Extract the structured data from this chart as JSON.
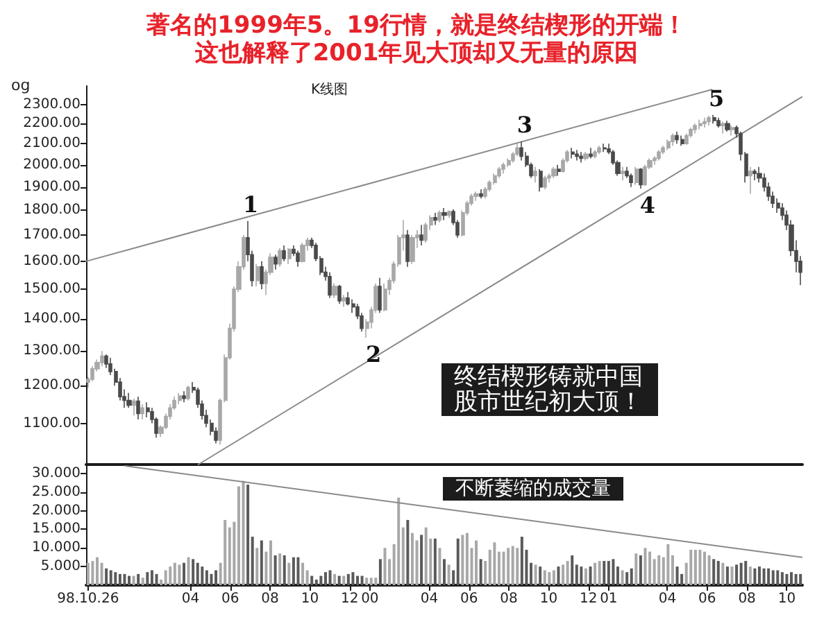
{
  "chart_data": [
    {
      "type": "candlestick",
      "title": "著名的1999年5。19行情，就是终结楔形的开端！",
      "subtitle": "这也解释了2001年见大顶却又无量的原因",
      "x": [
        "1998-10-26",
        "1998-11-02",
        "1998-11-09",
        "1998-11-16",
        "1998-11-23",
        "1998-11-30",
        "1998-12-07",
        "1998-12-14",
        "1998-12-21",
        "1998-12-28",
        "1999-01-04",
        "1999-01-11",
        "1999-01-18",
        "1999-01-25",
        "1999-02-01",
        "1999-02-08",
        "1999-02-15",
        "1999-02-22",
        "1999-03-01",
        "1999-03-08",
        "1999-03-15",
        "1999-03-22",
        "1999-03-29",
        "1999-04-05",
        "1999-04-12",
        "1999-04-19",
        "1999-04-26",
        "1999-05-03",
        "1999-05-10",
        "1999-05-17",
        "1999-05-24",
        "1999-05-31",
        "1999-06-07",
        "1999-06-14",
        "1999-06-21",
        "1999-06-28",
        "1999-07-05",
        "1999-07-12",
        "1999-07-19",
        "1999-07-26",
        "1999-08-02",
        "1999-08-09",
        "1999-08-16",
        "1999-08-23",
        "1999-08-30",
        "1999-09-06",
        "1999-09-13",
        "1999-09-20",
        "1999-09-27",
        "1999-10-04",
        "1999-10-11",
        "1999-10-18",
        "1999-10-25",
        "1999-11-01",
        "1999-11-08",
        "1999-11-15",
        "1999-11-22",
        "1999-11-29",
        "1999-12-06",
        "1999-12-13",
        "1999-12-20",
        "1999-12-27",
        "2000-01-03",
        "2000-01-10",
        "2000-01-17",
        "2000-01-24",
        "2000-01-31",
        "2000-02-07",
        "2000-02-14",
        "2000-02-21",
        "2000-02-28",
        "2000-03-06",
        "2000-03-13",
        "2000-03-20",
        "2000-03-27",
        "2000-04-03",
        "2000-04-10",
        "2000-04-17",
        "2000-04-24",
        "2000-05-01",
        "2000-05-08",
        "2000-05-15",
        "2000-05-22",
        "2000-05-29",
        "2000-06-05",
        "2000-06-12",
        "2000-06-19",
        "2000-06-26",
        "2000-07-03",
        "2000-07-10",
        "2000-07-17",
        "2000-07-24",
        "2000-07-31",
        "2000-08-07",
        "2000-08-14",
        "2000-08-21",
        "2000-08-28",
        "2000-09-04",
        "2000-09-11",
        "2000-09-18",
        "2000-09-25",
        "2000-10-02",
        "2000-10-09",
        "2000-10-16",
        "2000-10-23",
        "2000-10-30",
        "2000-11-06",
        "2000-11-13",
        "2000-11-20",
        "2000-11-27",
        "2000-12-04",
        "2000-12-11",
        "2000-12-18",
        "2000-12-25",
        "2001-01-01",
        "2001-01-08",
        "2001-01-15",
        "2001-01-22",
        "2001-01-29",
        "2001-02-05",
        "2001-02-12",
        "2001-02-19",
        "2001-02-26",
        "2001-03-05",
        "2001-03-12",
        "2001-03-19",
        "2001-03-26",
        "2001-04-02",
        "2001-04-09",
        "2001-04-16",
        "2001-04-23",
        "2001-04-30",
        "2001-05-07",
        "2001-05-14",
        "2001-05-21",
        "2001-05-28",
        "2001-06-04",
        "2001-06-11",
        "2001-06-18",
        "2001-06-25",
        "2001-07-02",
        "2001-07-09",
        "2001-07-16",
        "2001-07-23",
        "2001-07-30",
        "2001-08-06",
        "2001-08-13",
        "2001-08-20",
        "2001-08-27",
        "2001-09-03",
        "2001-09-10",
        "2001-09-17",
        "2001-09-24",
        "2001-10-01",
        "2001-10-08",
        "2001-10-15",
        "2001-10-22"
      ],
      "ohlc": [
        [
          1210,
          1225,
          1195,
          1218
        ],
        [
          1218,
          1255,
          1212,
          1248
        ],
        [
          1248,
          1275,
          1240,
          1266
        ],
        [
          1266,
          1300,
          1255,
          1285
        ],
        [
          1285,
          1290,
          1250,
          1262
        ],
        [
          1262,
          1280,
          1230,
          1240
        ],
        [
          1240,
          1248,
          1200,
          1210
        ],
        [
          1210,
          1222,
          1160,
          1170
        ],
        [
          1170,
          1190,
          1140,
          1160
        ],
        [
          1160,
          1180,
          1140,
          1147
        ],
        [
          1147,
          1165,
          1120,
          1158
        ],
        [
          1158,
          1170,
          1110,
          1125
        ],
        [
          1125,
          1150,
          1110,
          1140
        ],
        [
          1140,
          1155,
          1115,
          1130
        ],
        [
          1130,
          1140,
          1100,
          1110
        ],
        [
          1110,
          1115,
          1064,
          1075
        ],
        [
          1075,
          1095,
          1066,
          1090
        ],
        [
          1090,
          1125,
          1085,
          1118
        ],
        [
          1118,
          1150,
          1110,
          1140
        ],
        [
          1140,
          1170,
          1135,
          1160
        ],
        [
          1160,
          1180,
          1150,
          1172
        ],
        [
          1172,
          1185,
          1155,
          1165
        ],
        [
          1165,
          1200,
          1160,
          1195
        ],
        [
          1195,
          1210,
          1180,
          1188
        ],
        [
          1188,
          1195,
          1140,
          1150
        ],
        [
          1150,
          1160,
          1110,
          1120
        ],
        [
          1120,
          1135,
          1090,
          1100
        ],
        [
          1100,
          1110,
          1070,
          1080
        ],
        [
          1080,
          1090,
          1050,
          1058
        ],
        [
          1058,
          1165,
          1047,
          1160
        ],
        [
          1160,
          1290,
          1155,
          1280
        ],
        [
          1280,
          1385,
          1275,
          1370
        ],
        [
          1370,
          1510,
          1360,
          1500
        ],
        [
          1500,
          1600,
          1490,
          1580
        ],
        [
          1580,
          1700,
          1570,
          1690
        ],
        [
          1690,
          1756,
          1600,
          1625
        ],
        [
          1625,
          1640,
          1510,
          1530
        ],
        [
          1530,
          1590,
          1510,
          1580
        ],
        [
          1580,
          1600,
          1500,
          1520
        ],
        [
          1520,
          1570,
          1480,
          1560
        ],
        [
          1560,
          1630,
          1550,
          1615
        ],
        [
          1615,
          1625,
          1570,
          1590
        ],
        [
          1590,
          1650,
          1580,
          1640
        ],
        [
          1640,
          1660,
          1600,
          1610
        ],
        [
          1610,
          1650,
          1590,
          1645
        ],
        [
          1645,
          1660,
          1620,
          1630
        ],
        [
          1630,
          1640,
          1580,
          1600
        ],
        [
          1600,
          1670,
          1595,
          1660
        ],
        [
          1660,
          1690,
          1640,
          1680
        ],
        [
          1680,
          1690,
          1650,
          1660
        ],
        [
          1660,
          1670,
          1600,
          1610
        ],
        [
          1610,
          1620,
          1550,
          1560
        ],
        [
          1560,
          1580,
          1530,
          1545
        ],
        [
          1545,
          1560,
          1470,
          1480
        ],
        [
          1480,
          1520,
          1470,
          1510
        ],
        [
          1510,
          1515,
          1450,
          1460
        ],
        [
          1460,
          1480,
          1440,
          1470
        ],
        [
          1470,
          1490,
          1445,
          1450
        ],
        [
          1450,
          1465,
          1420,
          1440
        ],
        [
          1440,
          1450,
          1400,
          1410
        ],
        [
          1410,
          1420,
          1360,
          1370
        ],
        [
          1370,
          1400,
          1341,
          1390
        ],
        [
          1390,
          1440,
          1370,
          1430
        ],
        [
          1430,
          1520,
          1420,
          1510
        ],
        [
          1510,
          1540,
          1420,
          1430
        ],
        [
          1430,
          1520,
          1425,
          1500
        ],
        [
          1500,
          1540,
          1480,
          1530
        ],
        [
          1530,
          1600,
          1520,
          1590
        ],
        [
          1590,
          1700,
          1580,
          1690
        ],
        [
          1690,
          1760,
          1640,
          1700
        ],
        [
          1700,
          1720,
          1580,
          1600
        ],
        [
          1600,
          1700,
          1590,
          1690
        ],
        [
          1690,
          1720,
          1650,
          1700
        ],
        [
          1700,
          1740,
          1660,
          1680
        ],
        [
          1680,
          1750,
          1670,
          1740
        ],
        [
          1740,
          1780,
          1720,
          1770
        ],
        [
          1770,
          1790,
          1740,
          1760
        ],
        [
          1760,
          1800,
          1750,
          1790
        ],
        [
          1790,
          1810,
          1760,
          1780
        ],
        [
          1780,
          1800,
          1770,
          1795
        ],
        [
          1795,
          1805,
          1740,
          1750
        ],
        [
          1750,
          1760,
          1690,
          1700
        ],
        [
          1700,
          1800,
          1695,
          1790
        ],
        [
          1790,
          1840,
          1780,
          1830
        ],
        [
          1830,
          1870,
          1820,
          1860
        ],
        [
          1860,
          1880,
          1840,
          1870
        ],
        [
          1870,
          1890,
          1850,
          1860
        ],
        [
          1860,
          1900,
          1850,
          1890
        ],
        [
          1890,
          1930,
          1880,
          1920
        ],
        [
          1920,
          1960,
          1910,
          1950
        ],
        [
          1950,
          1990,
          1940,
          1980
        ],
        [
          1980,
          2010,
          1960,
          2000
        ],
        [
          2000,
          2030,
          1990,
          2020
        ],
        [
          2020,
          2060,
          2010,
          2050
        ],
        [
          2050,
          2100,
          2040,
          2080
        ],
        [
          2080,
          2110,
          2020,
          2040
        ],
        [
          2040,
          2060,
          1990,
          2000
        ],
        [
          2000,
          2010,
          1940,
          1950
        ],
        [
          1950,
          1990,
          1920,
          1970
        ],
        [
          1970,
          1980,
          1880,
          1900
        ],
        [
          1900,
          1950,
          1890,
          1940
        ],
        [
          1940,
          1960,
          1920,
          1950
        ],
        [
          1950,
          1990,
          1940,
          1980
        ],
        [
          1980,
          2000,
          1950,
          1970
        ],
        [
          1970,
          2030,
          1965,
          2020
        ],
        [
          2020,
          2070,
          2010,
          2060
        ],
        [
          2060,
          2080,
          2030,
          2050
        ],
        [
          2050,
          2070,
          2020,
          2040
        ],
        [
          2040,
          2060,
          2010,
          2030
        ],
        [
          2030,
          2060,
          2020,
          2050
        ],
        [
          2050,
          2080,
          2030,
          2040
        ],
        [
          2040,
          2070,
          2030,
          2060
        ],
        [
          2060,
          2090,
          2050,
          2080
        ],
        [
          2080,
          2100,
          2060,
          2075
        ],
        [
          2075,
          2100,
          2050,
          2060
        ],
        [
          2060,
          2070,
          2000,
          2010
        ],
        [
          2010,
          2020,
          1950,
          1960
        ],
        [
          1960,
          1990,
          1930,
          1970
        ],
        [
          1970,
          1990,
          1940,
          1950
        ],
        [
          1950,
          1960,
          1900,
          1920
        ],
        [
          1920,
          1990,
          1910,
          1980
        ],
        [
          1980,
          1985,
          1893,
          1910
        ],
        [
          1910,
          2000,
          1905,
          1990
        ],
        [
          1990,
          2030,
          1980,
          2020
        ],
        [
          2020,
          2040,
          2000,
          2030
        ],
        [
          2030,
          2070,
          2020,
          2060
        ],
        [
          2060,
          2090,
          2050,
          2080
        ],
        [
          2080,
          2120,
          2070,
          2110
        ],
        [
          2110,
          2150,
          2090,
          2140
        ],
        [
          2140,
          2160,
          2100,
          2120
        ],
        [
          2120,
          2140,
          2090,
          2100
        ],
        [
          2100,
          2150,
          2095,
          2140
        ],
        [
          2140,
          2180,
          2130,
          2170
        ],
        [
          2170,
          2200,
          2150,
          2190
        ],
        [
          2190,
          2220,
          2170,
          2200
        ],
        [
          2200,
          2230,
          2180,
          2210
        ],
        [
          2210,
          2240,
          2190,
          2230
        ],
        [
          2230,
          2245,
          2200,
          2215
        ],
        [
          2215,
          2230,
          2180,
          2190
        ],
        [
          2190,
          2210,
          2150,
          2200
        ],
        [
          2200,
          2215,
          2160,
          2170
        ],
        [
          2170,
          2190,
          2140,
          2180
        ],
        [
          2180,
          2190,
          2130,
          2150
        ],
        [
          2150,
          2160,
          2020,
          2050
        ],
        [
          2050,
          2060,
          1920,
          1950
        ],
        [
          1950,
          1990,
          1870,
          1970
        ],
        [
          1970,
          1980,
          1930,
          1960
        ],
        [
          1960,
          1990,
          1920,
          1940
        ],
        [
          1940,
          1960,
          1880,
          1900
        ],
        [
          1900,
          1920,
          1840,
          1860
        ],
        [
          1860,
          1880,
          1810,
          1830
        ],
        [
          1830,
          1850,
          1790,
          1810
        ],
        [
          1810,
          1830,
          1760,
          1780
        ],
        [
          1780,
          1800,
          1720,
          1740
        ],
        [
          1740,
          1760,
          1620,
          1640
        ],
        [
          1640,
          1680,
          1560,
          1600
        ],
        [
          1600,
          1620,
          1514,
          1560
        ]
      ],
      "colors": [
        "#a8a8a8",
        "#a8a8a8",
        "#a8a8a8",
        "#a8a8a8",
        "#4a4a4a",
        "#4a4a4a",
        "#4a4a4a",
        "#4a4a4a",
        "#4a4a4a",
        "#4a4a4a",
        "#a8a8a8",
        "#4a4a4a",
        "#a8a8a8",
        "#4a4a4a",
        "#4a4a4a",
        "#4a4a4a",
        "#a8a8a8",
        "#a8a8a8",
        "#a8a8a8",
        "#a8a8a8",
        "#a8a8a8",
        "#4a4a4a",
        "#a8a8a8",
        "#4a4a4a",
        "#4a4a4a",
        "#4a4a4a",
        "#4a4a4a",
        "#4a4a4a",
        "#4a4a4a",
        "#a8a8a8",
        "#a8a8a8",
        "#a8a8a8",
        "#a8a8a8",
        "#a8a8a8",
        "#a8a8a8",
        "#4a4a4a",
        "#4a4a4a",
        "#a8a8a8",
        "#4a4a4a",
        "#a8a8a8",
        "#a8a8a8",
        "#4a4a4a",
        "#a8a8a8",
        "#4a4a4a",
        "#a8a8a8",
        "#4a4a4a",
        "#4a4a4a",
        "#a8a8a8",
        "#a8a8a8",
        "#4a4a4a",
        "#4a4a4a",
        "#4a4a4a",
        "#4a4a4a",
        "#4a4a4a",
        "#a8a8a8",
        "#4a4a4a",
        "#a8a8a8",
        "#4a4a4a",
        "#4a4a4a",
        "#4a4a4a",
        "#4a4a4a",
        "#a8a8a8",
        "#a8a8a8",
        "#a8a8a8",
        "#4a4a4a",
        "#a8a8a8",
        "#a8a8a8",
        "#a8a8a8",
        "#a8a8a8",
        "#a8a8a8",
        "#4a4a4a",
        "#a8a8a8",
        "#a8a8a8",
        "#4a4a4a",
        "#a8a8a8",
        "#a8a8a8",
        "#4a4a4a",
        "#a8a8a8",
        "#4a4a4a",
        "#a8a8a8",
        "#4a4a4a",
        "#4a4a4a",
        "#a8a8a8",
        "#a8a8a8",
        "#a8a8a8",
        "#a8a8a8",
        "#4a4a4a",
        "#a8a8a8",
        "#a8a8a8",
        "#a8a8a8",
        "#a8a8a8",
        "#a8a8a8",
        "#a8a8a8",
        "#a8a8a8",
        "#a8a8a8",
        "#4a4a4a",
        "#4a4a4a",
        "#4a4a4a",
        "#a8a8a8",
        "#4a4a4a",
        "#a8a8a8",
        "#a8a8a8",
        "#a8a8a8",
        "#4a4a4a",
        "#a8a8a8",
        "#a8a8a8",
        "#4a4a4a",
        "#4a4a4a",
        "#4a4a4a",
        "#a8a8a8",
        "#4a4a4a",
        "#a8a8a8",
        "#a8a8a8",
        "#4a4a4a",
        "#4a4a4a",
        "#4a4a4a",
        "#4a4a4a",
        "#a8a8a8",
        "#4a4a4a",
        "#4a4a4a",
        "#a8a8a8",
        "#4a4a4a",
        "#a8a8a8",
        "#a8a8a8",
        "#a8a8a8",
        "#a8a8a8",
        "#a8a8a8",
        "#a8a8a8",
        "#a8a8a8",
        "#4a4a4a",
        "#4a4a4a",
        "#a8a8a8",
        "#a8a8a8",
        "#a8a8a8",
        "#a8a8a8",
        "#a8a8a8",
        "#a8a8a8",
        "#4a4a4a",
        "#4a4a4a",
        "#a8a8a8",
        "#4a4a4a",
        "#a8a8a8",
        "#4a4a4a",
        "#4a4a4a",
        "#4a4a4a",
        "#a8a8a8",
        "#4a4a4a",
        "#4a4a4a",
        "#4a4a4a",
        "#4a4a4a",
        "#4a4a4a",
        "#4a4a4a",
        "#4a4a4a",
        "#4a4a4a",
        "#4a4a4a",
        "#4a4a4a",
        "#4a4a4a"
      ],
      "series": [
        {
          "type": "line",
          "x": [
            "1998-10-23",
            "2001-06-08"
          ],
          "values": [
            1600,
            2380
          ],
          "color": "#8a8a8a"
        },
        {
          "type": "line",
          "x": [
            "1999-04-13",
            "2001-10-24"
          ],
          "values": [
            1000,
            2340
          ],
          "color": "#8a8a8a"
        }
      ],
      "xlim": [
        "1998-10-23",
        "2001-10-25"
      ],
      "ylim": [
        1000,
        2400
      ],
      "log": true,
      "yticks": [
        {
          "value": 1100,
          "label": "1100.00"
        },
        {
          "value": 1200,
          "label": "1200.00"
        },
        {
          "value": 1300,
          "label": "1300.00"
        },
        {
          "value": 1400,
          "label": "1400.00"
        },
        {
          "value": 1500,
          "label": "1500.00"
        },
        {
          "value": 1600,
          "label": "1600.00"
        },
        {
          "value": 1700,
          "label": "1700.00"
        },
        {
          "value": 1800,
          "label": "1800.00"
        },
        {
          "value": 1900,
          "label": "1900.00"
        },
        {
          "value": 2000,
          "label": "2000.00"
        },
        {
          "value": 2100,
          "label": "2100.00"
        },
        {
          "value": 2200,
          "label": "2200.00"
        },
        {
          "value": 2300,
          "label": "2300.00"
        }
      ],
      "tick_labels": "y",
      "marker": "none",
      "line_style": "solid",
      "annotations": [
        "og",
        "K线图",
        "终结楔形铸就中国股市世纪初大顶！",
        {
          "text": "1",
          "x": "1999-06-28",
          "y": 1756
        },
        {
          "text": "2",
          "x": "1999-12-27",
          "y": 1341
        },
        {
          "text": "3",
          "x": "2000-08-21",
          "y": 2110
        },
        {
          "text": "4",
          "x": "2001-02-19",
          "y": 1893
        },
        {
          "text": "5",
          "x": "2001-06-11",
          "y": 2245
        }
      ]
    },
    {
      "type": "bar",
      "x": [
        "1998-10-26",
        "1998-11-02",
        "1998-11-09",
        "1998-11-16",
        "1998-11-23",
        "1998-11-30",
        "1998-12-07",
        "1998-12-14",
        "1998-12-21",
        "1998-12-28",
        "1999-01-04",
        "1999-01-11",
        "1999-01-18",
        "1999-01-25",
        "1999-02-01",
        "1999-02-08",
        "1999-02-15",
        "1999-02-22",
        "1999-03-01",
        "1999-03-08",
        "1999-03-15",
        "1999-03-22",
        "1999-03-29",
        "1999-04-05",
        "1999-04-12",
        "1999-04-19",
        "1999-04-26",
        "1999-05-03",
        "1999-05-10",
        "1999-05-17",
        "1999-05-24",
        "1999-05-31",
        "1999-06-07",
        "1999-06-14",
        "1999-06-21",
        "1999-06-28",
        "1999-07-05",
        "1999-07-12",
        "1999-07-19",
        "1999-07-26",
        "1999-08-02",
        "1999-08-09",
        "1999-08-16",
        "1999-08-23",
        "1999-08-30",
        "1999-09-06",
        "1999-09-13",
        "1999-09-20",
        "1999-09-27",
        "1999-10-04",
        "1999-10-11",
        "1999-10-18",
        "1999-10-25",
        "1999-11-01",
        "1999-11-08",
        "1999-11-15",
        "1999-11-22",
        "1999-11-29",
        "1999-12-06",
        "1999-12-13",
        "1999-12-20",
        "1999-12-27",
        "2000-01-03",
        "2000-01-10",
        "2000-01-17",
        "2000-01-24",
        "2000-01-31",
        "2000-02-07",
        "2000-02-14",
        "2000-02-21",
        "2000-02-28",
        "2000-03-06",
        "2000-03-13",
        "2000-03-20",
        "2000-03-27",
        "2000-04-03",
        "2000-04-10",
        "2000-04-17",
        "2000-04-24",
        "2000-05-01",
        "2000-05-08",
        "2000-05-15",
        "2000-05-22",
        "2000-05-29",
        "2000-06-05",
        "2000-06-12",
        "2000-06-19",
        "2000-06-26",
        "2000-07-03",
        "2000-07-10",
        "2000-07-17",
        "2000-07-24",
        "2000-07-31",
        "2000-08-07",
        "2000-08-14",
        "2000-08-21",
        "2000-08-28",
        "2000-09-04",
        "2000-09-11",
        "2000-09-18",
        "2000-09-25",
        "2000-10-02",
        "2000-10-09",
        "2000-10-16",
        "2000-10-23",
        "2000-10-30",
        "2000-11-06",
        "2000-11-13",
        "2000-11-20",
        "2000-11-27",
        "2000-12-04",
        "2000-12-11",
        "2000-12-18",
        "2000-12-25",
        "2001-01-01",
        "2001-01-08",
        "2001-01-15",
        "2001-01-22",
        "2001-01-29",
        "2001-02-05",
        "2001-02-12",
        "2001-02-19",
        "2001-02-26",
        "2001-03-05",
        "2001-03-12",
        "2001-03-19",
        "2001-03-26",
        "2001-04-02",
        "2001-04-09",
        "2001-04-16",
        "2001-04-23",
        "2001-04-30",
        "2001-05-07",
        "2001-05-14",
        "2001-05-21",
        "2001-05-28",
        "2001-06-04",
        "2001-06-11",
        "2001-06-18",
        "2001-06-25",
        "2001-07-02",
        "2001-07-09",
        "2001-07-16",
        "2001-07-23",
        "2001-07-30",
        "2001-08-06",
        "2001-08-13",
        "2001-08-20",
        "2001-08-27",
        "2001-09-03",
        "2001-09-10",
        "2001-09-17",
        "2001-09-24",
        "2001-10-01",
        "2001-10-08",
        "2001-10-15",
        "2001-10-22"
      ],
      "values": [
        6,
        6.5,
        7.5,
        6,
        4.5,
        4,
        3.5,
        3,
        3,
        2.5,
        2.5,
        3,
        2,
        3.5,
        4,
        3,
        1.5,
        4,
        5,
        6,
        5.5,
        6,
        7.5,
        7,
        6,
        5,
        4,
        3,
        4,
        6,
        17.5,
        15.5,
        17,
        26.5,
        28,
        27,
        13,
        10,
        12,
        9,
        12,
        8,
        8.5,
        8,
        6,
        7.5,
        7.5,
        6,
        4,
        2.5,
        1.5,
        2.5,
        3.5,
        4,
        3,
        2.5,
        2.5,
        3,
        3.5,
        2.5,
        2.5,
        2,
        2,
        2,
        7,
        10,
        7,
        11,
        23.5,
        15.5,
        17.5,
        14,
        12,
        13.5,
        15.5,
        12.5,
        12.5,
        10,
        7,
        5.5,
        4,
        12.5,
        13.5,
        14,
        10,
        12,
        7,
        6.5,
        9.5,
        11.5,
        9,
        9,
        10,
        10.5,
        10,
        13,
        9.5,
        6,
        5.5,
        5,
        4,
        3.5,
        4,
        5,
        5.5,
        6.5,
        8,
        5.5,
        5,
        4.5,
        5,
        6,
        6.5,
        6.5,
        6.5,
        7,
        5,
        4,
        3.5,
        4.5,
        8.5,
        8,
        10,
        9,
        7,
        8,
        7.5,
        11,
        8,
        5,
        3,
        6,
        9.5,
        9.5,
        9.5,
        9,
        8,
        7,
        6.5,
        6,
        5,
        5,
        5.5,
        6,
        6.5,
        5,
        4.5,
        5,
        4.5,
        4.5,
        4,
        4,
        3.5,
        3,
        3.5,
        3,
        3
      ],
      "colors": [
        "#a8a8a8",
        "#a8a8a8",
        "#a8a8a8",
        "#a8a8a8",
        "#5a5a5a",
        "#5a5a5a",
        "#5a5a5a",
        "#5a5a5a",
        "#5a5a5a",
        "#5a5a5a",
        "#a8a8a8",
        "#5a5a5a",
        "#a8a8a8",
        "#5a5a5a",
        "#5a5a5a",
        "#5a5a5a",
        "#a8a8a8",
        "#a8a8a8",
        "#a8a8a8",
        "#a8a8a8",
        "#a8a8a8",
        "#5a5a5a",
        "#a8a8a8",
        "#5a5a5a",
        "#5a5a5a",
        "#5a5a5a",
        "#5a5a5a",
        "#5a5a5a",
        "#5a5a5a",
        "#a8a8a8",
        "#a8a8a8",
        "#a8a8a8",
        "#a8a8a8",
        "#a8a8a8",
        "#a8a8a8",
        "#5a5a5a",
        "#5a5a5a",
        "#a8a8a8",
        "#5a5a5a",
        "#a8a8a8",
        "#a8a8a8",
        "#5a5a5a",
        "#a8a8a8",
        "#5a5a5a",
        "#a8a8a8",
        "#5a5a5a",
        "#5a5a5a",
        "#a8a8a8",
        "#a8a8a8",
        "#5a5a5a",
        "#5a5a5a",
        "#5a5a5a",
        "#5a5a5a",
        "#5a5a5a",
        "#a8a8a8",
        "#5a5a5a",
        "#a8a8a8",
        "#5a5a5a",
        "#5a5a5a",
        "#5a5a5a",
        "#5a5a5a",
        "#a8a8a8",
        "#a8a8a8",
        "#a8a8a8",
        "#5a5a5a",
        "#a8a8a8",
        "#a8a8a8",
        "#a8a8a8",
        "#a8a8a8",
        "#a8a8a8",
        "#5a5a5a",
        "#a8a8a8",
        "#a8a8a8",
        "#5a5a5a",
        "#a8a8a8",
        "#a8a8a8",
        "#5a5a5a",
        "#a8a8a8",
        "#5a5a5a",
        "#a8a8a8",
        "#5a5a5a",
        "#5a5a5a",
        "#a8a8a8",
        "#a8a8a8",
        "#a8a8a8",
        "#a8a8a8",
        "#5a5a5a",
        "#a8a8a8",
        "#a8a8a8",
        "#a8a8a8",
        "#a8a8a8",
        "#a8a8a8",
        "#a8a8a8",
        "#a8a8a8",
        "#a8a8a8",
        "#5a5a5a",
        "#5a5a5a",
        "#5a5a5a",
        "#a8a8a8",
        "#5a5a5a",
        "#a8a8a8",
        "#a8a8a8",
        "#a8a8a8",
        "#5a5a5a",
        "#a8a8a8",
        "#a8a8a8",
        "#5a5a5a",
        "#5a5a5a",
        "#5a5a5a",
        "#a8a8a8",
        "#5a5a5a",
        "#a8a8a8",
        "#a8a8a8",
        "#5a5a5a",
        "#5a5a5a",
        "#5a5a5a",
        "#5a5a5a",
        "#a8a8a8",
        "#5a5a5a",
        "#5a5a5a",
        "#a8a8a8",
        "#5a5a5a",
        "#a8a8a8",
        "#a8a8a8",
        "#a8a8a8",
        "#a8a8a8",
        "#a8a8a8",
        "#a8a8a8",
        "#a8a8a8",
        "#5a5a5a",
        "#5a5a5a",
        "#a8a8a8",
        "#a8a8a8",
        "#a8a8a8",
        "#a8a8a8",
        "#a8a8a8",
        "#a8a8a8",
        "#5a5a5a",
        "#5a5a5a",
        "#a8a8a8",
        "#5a5a5a",
        "#a8a8a8",
        "#5a5a5a",
        "#5a5a5a",
        "#5a5a5a",
        "#a8a8a8",
        "#5a5a5a",
        "#5a5a5a",
        "#5a5a5a",
        "#5a5a5a",
        "#5a5a5a",
        "#5a5a5a",
        "#5a5a5a",
        "#5a5a5a",
        "#5a5a5a",
        "#5a5a5a",
        "#5a5a5a"
      ],
      "series": [
        {
          "type": "line",
          "x": [
            "1998-12-22",
            "2001-10-24"
          ],
          "values": [
            32,
            7.5
          ],
          "color": "#8a8a8a"
        }
      ],
      "xlim": [
        "1998-10-23",
        "2001-10-25"
      ],
      "xticks": [
        {
          "value": "1998-10-26",
          "label": "98.10.26"
        },
        {
          "value": "1999-04-01",
          "label": "04"
        },
        {
          "value": "1999-06-01",
          "label": "06"
        },
        {
          "value": "1999-08-01",
          "label": "08"
        },
        {
          "value": "1999-10-01",
          "label": "10"
        },
        {
          "value": "1999-12-01",
          "label": "12"
        },
        {
          "value": "2000-01-01",
          "label": "00"
        },
        {
          "value": "2000-04-01",
          "label": "04"
        },
        {
          "value": "2000-06-01",
          "label": "06"
        },
        {
          "value": "2000-08-01",
          "label": "08"
        },
        {
          "value": "2000-10-01",
          "label": "10"
        },
        {
          "value": "2000-12-01",
          "label": "12"
        },
        {
          "value": "2001-01-01",
          "label": "01"
        },
        {
          "value": "2001-04-01",
          "label": "04"
        },
        {
          "value": "2001-06-01",
          "label": "06"
        },
        {
          "value": "2001-08-01",
          "label": "08"
        },
        {
          "value": "2001-10-01",
          "label": "10"
        }
      ],
      "ylim": [
        0,
        32
      ],
      "yticks": [
        {
          "value": 5,
          "label": "5.000"
        },
        {
          "value": 10,
          "label": "10.000"
        },
        {
          "value": 15,
          "label": "15.000"
        },
        {
          "value": 20,
          "label": "20.000"
        },
        {
          "value": 25,
          "label": "25.000"
        },
        {
          "value": 30,
          "label": "30.000"
        }
      ],
      "marker": "none",
      "line_style": "solid",
      "annotations": [
        "不断萎缩的成交量"
      ]
    }
  ]
}
